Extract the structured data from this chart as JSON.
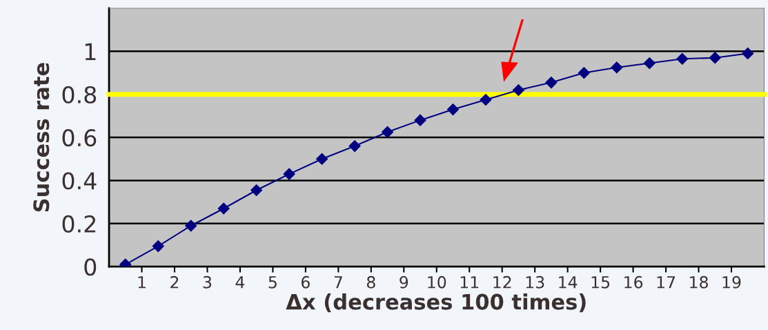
{
  "chart_data": {
    "type": "line",
    "xlabel": "Δx (decreases 100 times)",
    "ylabel": "Success rate",
    "x": [
      0.5,
      1.5,
      2.5,
      3.5,
      4.5,
      5.5,
      6.5,
      7.5,
      8.5,
      9.5,
      10.5,
      11.5,
      12.5,
      13.5,
      14.5,
      15.5,
      16.5,
      17.5,
      18.5,
      19.5
    ],
    "series": [
      {
        "color": "#000080",
        "values": [
          0.01,
          0.095,
          0.19,
          0.27,
          0.355,
          0.43,
          0.5,
          0.56,
          0.625,
          0.68,
          0.73,
          0.775,
          0.82,
          0.855,
          0.9,
          0.925,
          0.945,
          0.965,
          0.97,
          0.99
        ]
      }
    ],
    "xlim": [
      0,
      20
    ],
    "xticks": [
      1,
      2,
      3,
      4,
      5,
      6,
      7,
      8,
      9,
      10,
      11,
      12,
      13,
      14,
      15,
      16,
      17,
      18,
      19
    ],
    "ylim": [
      0,
      1.2
    ],
    "yticks": [
      0,
      0.2,
      0.4,
      0.6,
      0.8,
      1
    ],
    "grid": "y",
    "marker": "diamond",
    "line_style": "solid",
    "legend": false,
    "ref_lines": [
      {
        "axis": "y",
        "value": 0.8,
        "color": "#ffff00"
      }
    ]
  }
}
